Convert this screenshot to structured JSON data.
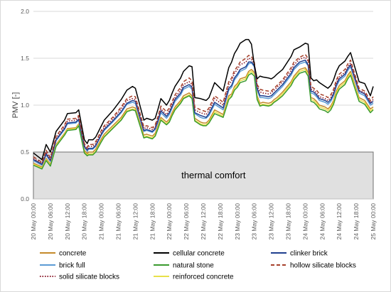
{
  "chart_data": {
    "type": "line",
    "title": "",
    "xlabel": "",
    "ylabel": "PMV [-]",
    "ylim": [
      0.0,
      2.0
    ],
    "y_ticks": [
      "0.0",
      "0.5",
      "1.0",
      "1.5",
      "2.0"
    ],
    "grid": "horizontal",
    "x_tick_labels": [
      "20 May 00:00",
      "20 May 06:00",
      "20 May 12:00",
      "20 May 18:00",
      "21 May 00:00",
      "21 May 06:00",
      "21 May 12:00",
      "21 May 18:00",
      "22 May 00:00",
      "22 May 06:00",
      "22 May 12:00",
      "22 May 18:00",
      "23 May 00:00",
      "23 May 06:00",
      "23 May 12:00",
      "23 May 18:00",
      "24 May 00:00",
      "24 May 06:00",
      "24 May 12:00",
      "24 May 18:00",
      "25 May 00:00"
    ],
    "x_hours_from_first_tick": [
      0,
      3,
      4.5,
      6,
      8,
      11,
      12,
      15,
      16,
      18,
      19,
      19.5,
      21,
      22,
      24,
      25,
      28,
      31,
      33,
      35,
      36,
      39,
      40,
      42,
      43,
      44,
      45,
      47,
      48,
      49,
      50,
      52,
      53,
      55,
      56,
      57,
      59,
      60,
      61,
      62,
      64,
      67,
      69,
      70,
      71,
      72,
      73,
      75,
      76,
      77,
      78,
      79,
      80,
      81,
      83,
      84,
      85,
      86,
      88,
      91,
      92,
      94,
      96,
      97,
      98,
      99,
      100,
      101,
      103,
      104,
      105,
      106,
      107,
      108,
      110,
      111,
      112,
      115,
      117,
      119,
      120
    ],
    "annotation": "thermal comfort",
    "comfort_band": [
      0.0,
      0.5
    ],
    "legend_position": "bottom",
    "series": [
      {
        "name": "concrete",
        "color": "#c58a2a",
        "dash": "solid",
        "values": [
          0.38,
          0.34,
          0.43,
          0.37,
          0.58,
          0.7,
          0.75,
          0.76,
          0.8,
          0.52,
          0.48,
          0.5,
          0.5,
          0.53,
          0.64,
          0.69,
          0.78,
          0.87,
          0.96,
          0.98,
          0.97,
          0.68,
          0.69,
          0.67,
          0.7,
          0.78,
          0.87,
          0.82,
          0.85,
          0.92,
          0.98,
          1.05,
          1.1,
          1.13,
          1.1,
          0.86,
          0.82,
          0.81,
          0.81,
          0.84,
          0.95,
          0.9,
          1.1,
          1.12,
          1.2,
          1.23,
          1.28,
          1.3,
          1.36,
          1.38,
          1.35,
          1.1,
          1.02,
          1.03,
          1.02,
          1.03,
          1.06,
          1.08,
          1.14,
          1.25,
          1.31,
          1.38,
          1.4,
          1.35,
          1.08,
          1.07,
          1.04,
          1.0,
          0.98,
          0.96,
          0.99,
          1.05,
          1.15,
          1.21,
          1.26,
          1.32,
          1.36,
          1.08,
          1.05,
          0.96,
          0.98
        ]
      },
      {
        "name": "cellular concrete",
        "color": "#000000",
        "dash": "solid",
        "values": [
          0.49,
          0.42,
          0.58,
          0.5,
          0.72,
          0.84,
          0.91,
          0.92,
          0.95,
          0.63,
          0.59,
          0.63,
          0.63,
          0.66,
          0.78,
          0.84,
          0.94,
          1.06,
          1.16,
          1.2,
          1.18,
          0.84,
          0.86,
          0.84,
          0.86,
          0.96,
          1.07,
          1.0,
          1.05,
          1.13,
          1.2,
          1.29,
          1.36,
          1.42,
          1.41,
          1.08,
          1.07,
          1.06,
          1.05,
          1.08,
          1.24,
          1.15,
          1.4,
          1.46,
          1.55,
          1.6,
          1.66,
          1.7,
          1.7,
          1.65,
          1.43,
          1.28,
          1.31,
          1.3,
          1.29,
          1.28,
          1.3,
          1.33,
          1.38,
          1.52,
          1.59,
          1.62,
          1.66,
          1.65,
          1.29,
          1.26,
          1.27,
          1.24,
          1.2,
          1.18,
          1.21,
          1.27,
          1.36,
          1.42,
          1.47,
          1.52,
          1.56,
          1.25,
          1.23,
          1.1,
          1.2
        ]
      },
      {
        "name": "clinker brick",
        "color": "#1f3f8f",
        "dash": "solid",
        "values": [
          0.42,
          0.37,
          0.48,
          0.41,
          0.63,
          0.75,
          0.81,
          0.82,
          0.85,
          0.56,
          0.52,
          0.54,
          0.54,
          0.57,
          0.69,
          0.74,
          0.83,
          0.93,
          1.02,
          1.05,
          1.04,
          0.73,
          0.74,
          0.72,
          0.75,
          0.84,
          0.94,
          0.88,
          0.92,
          0.99,
          1.06,
          1.13,
          1.19,
          1.22,
          1.19,
          0.92,
          0.89,
          0.88,
          0.87,
          0.91,
          1.03,
          0.97,
          1.18,
          1.21,
          1.29,
          1.33,
          1.38,
          1.41,
          1.46,
          1.46,
          1.42,
          1.18,
          1.1,
          1.1,
          1.09,
          1.1,
          1.13,
          1.16,
          1.22,
          1.34,
          1.4,
          1.46,
          1.48,
          1.43,
          1.15,
          1.14,
          1.11,
          1.07,
          1.05,
          1.03,
          1.06,
          1.12,
          1.22,
          1.28,
          1.33,
          1.39,
          1.43,
          1.15,
          1.12,
          1.02,
          1.04
        ]
      },
      {
        "name": "brick full",
        "color": "#5b9bd5",
        "dash": "solid",
        "values": [
          0.41,
          0.36,
          0.47,
          0.4,
          0.62,
          0.74,
          0.8,
          0.81,
          0.84,
          0.55,
          0.51,
          0.53,
          0.53,
          0.56,
          0.68,
          0.73,
          0.82,
          0.92,
          1.01,
          1.03,
          1.02,
          0.72,
          0.73,
          0.71,
          0.74,
          0.82,
          0.92,
          0.86,
          0.9,
          0.97,
          1.04,
          1.11,
          1.17,
          1.2,
          1.17,
          0.91,
          0.87,
          0.86,
          0.86,
          0.89,
          1.01,
          0.95,
          1.16,
          1.19,
          1.27,
          1.31,
          1.36,
          1.39,
          1.44,
          1.45,
          1.41,
          1.16,
          1.08,
          1.08,
          1.07,
          1.08,
          1.11,
          1.14,
          1.2,
          1.32,
          1.38,
          1.44,
          1.46,
          1.42,
          1.13,
          1.12,
          1.09,
          1.05,
          1.03,
          1.01,
          1.04,
          1.1,
          1.2,
          1.26,
          1.31,
          1.37,
          1.41,
          1.13,
          1.1,
          1.0,
          1.02
        ]
      },
      {
        "name": "natural stone",
        "color": "#3a9a2e",
        "dash": "solid",
        "values": [
          0.36,
          0.32,
          0.41,
          0.35,
          0.56,
          0.68,
          0.73,
          0.74,
          0.78,
          0.49,
          0.46,
          0.47,
          0.47,
          0.5,
          0.61,
          0.66,
          0.75,
          0.84,
          0.93,
          0.95,
          0.94,
          0.65,
          0.66,
          0.64,
          0.67,
          0.75,
          0.84,
          0.79,
          0.82,
          0.89,
          0.95,
          1.02,
          1.07,
          1.1,
          1.07,
          0.83,
          0.79,
          0.78,
          0.78,
          0.81,
          0.91,
          0.87,
          1.06,
          1.09,
          1.16,
          1.19,
          1.24,
          1.26,
          1.32,
          1.34,
          1.31,
          1.06,
          0.99,
          1.0,
          0.99,
          1.0,
          1.03,
          1.05,
          1.1,
          1.21,
          1.27,
          1.34,
          1.36,
          1.31,
          1.04,
          1.03,
          1.0,
          0.96,
          0.94,
          0.92,
          0.95,
          1.01,
          1.11,
          1.17,
          1.22,
          1.28,
          1.32,
          1.04,
          1.01,
          0.92,
          0.95
        ]
      },
      {
        "name": "hollow silicate blocks",
        "color": "#a6402a",
        "dash": "dashed",
        "values": [
          0.45,
          0.39,
          0.52,
          0.44,
          0.67,
          0.79,
          0.85,
          0.86,
          0.89,
          0.59,
          0.55,
          0.58,
          0.58,
          0.61,
          0.73,
          0.78,
          0.87,
          0.98,
          1.07,
          1.1,
          1.09,
          0.77,
          0.78,
          0.76,
          0.79,
          0.88,
          0.99,
          0.93,
          0.97,
          1.04,
          1.11,
          1.19,
          1.25,
          1.29,
          1.26,
          0.98,
          0.95,
          0.94,
          0.93,
          0.97,
          1.1,
          1.03,
          1.25,
          1.29,
          1.37,
          1.41,
          1.46,
          1.5,
          1.53,
          1.52,
          1.46,
          1.22,
          1.17,
          1.16,
          1.15,
          1.15,
          1.18,
          1.21,
          1.27,
          1.4,
          1.46,
          1.51,
          1.54,
          1.5,
          1.2,
          1.18,
          1.16,
          1.12,
          1.1,
          1.08,
          1.11,
          1.17,
          1.27,
          1.33,
          1.38,
          1.44,
          1.48,
          1.18,
          1.15,
          1.05,
          1.09
        ]
      },
      {
        "name": "solid silicate blocks",
        "color": "#8b1a2b",
        "dash": "dotted",
        "values": [
          0.43,
          0.38,
          0.5,
          0.42,
          0.65,
          0.77,
          0.83,
          0.84,
          0.87,
          0.57,
          0.53,
          0.56,
          0.56,
          0.59,
          0.71,
          0.76,
          0.85,
          0.96,
          1.05,
          1.07,
          1.06,
          0.75,
          0.76,
          0.74,
          0.77,
          0.86,
          0.96,
          0.9,
          0.94,
          1.01,
          1.08,
          1.16,
          1.22,
          1.25,
          1.22,
          0.95,
          0.92,
          0.91,
          0.9,
          0.94,
          1.07,
          1.0,
          1.22,
          1.26,
          1.34,
          1.38,
          1.43,
          1.46,
          1.5,
          1.49,
          1.44,
          1.2,
          1.14,
          1.13,
          1.12,
          1.13,
          1.16,
          1.19,
          1.25,
          1.37,
          1.43,
          1.49,
          1.51,
          1.47,
          1.17,
          1.16,
          1.13,
          1.09,
          1.07,
          1.05,
          1.08,
          1.14,
          1.24,
          1.3,
          1.35,
          1.41,
          1.45,
          1.16,
          1.13,
          1.03,
          1.06
        ]
      },
      {
        "name": "reinforced concrete",
        "color": "#e8e04a",
        "dash": "solid",
        "values": [
          0.37,
          0.33,
          0.42,
          0.36,
          0.57,
          0.69,
          0.74,
          0.75,
          0.79,
          0.5,
          0.47,
          0.48,
          0.48,
          0.51,
          0.62,
          0.67,
          0.76,
          0.85,
          0.94,
          0.96,
          0.95,
          0.66,
          0.67,
          0.65,
          0.68,
          0.76,
          0.85,
          0.8,
          0.83,
          0.9,
          0.96,
          1.03,
          1.08,
          1.11,
          1.08,
          0.84,
          0.8,
          0.79,
          0.79,
          0.82,
          0.93,
          0.88,
          1.08,
          1.1,
          1.18,
          1.21,
          1.26,
          1.28,
          1.34,
          1.36,
          1.33,
          1.08,
          1.0,
          1.01,
          1.0,
          1.01,
          1.04,
          1.06,
          1.12,
          1.23,
          1.29,
          1.36,
          1.38,
          1.33,
          1.06,
          1.05,
          1.02,
          0.98,
          0.96,
          0.94,
          0.97,
          1.03,
          1.13,
          1.19,
          1.24,
          1.3,
          1.34,
          1.06,
          1.03,
          0.94,
          0.96
        ]
      }
    ]
  }
}
